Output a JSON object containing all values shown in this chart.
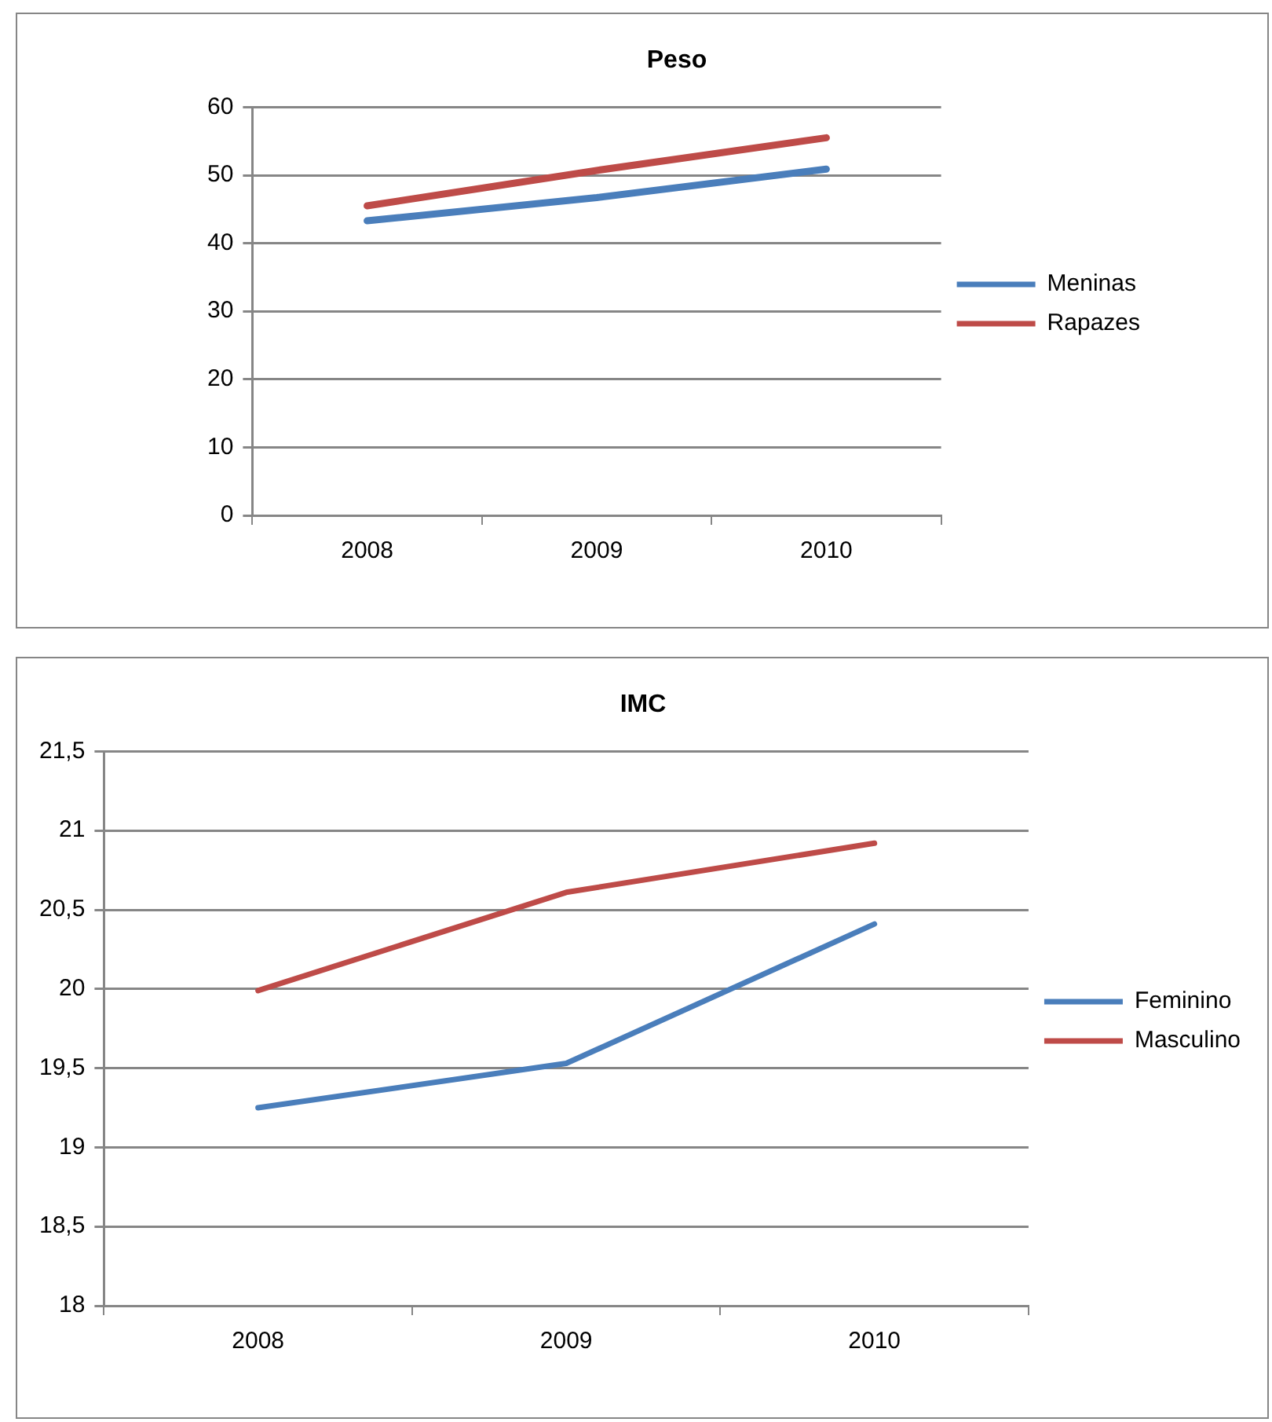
{
  "chart_data": [
    {
      "type": "line",
      "title": "Peso",
      "categories": [
        "2008",
        "2009",
        "2010"
      ],
      "series": [
        {
          "name": "Meninas",
          "color": "#4a7ebb",
          "values": [
            43.3,
            46.7,
            50.9
          ]
        },
        {
          "name": "Rapazes",
          "color": "#be4b48",
          "values": [
            45.5,
            50.7,
            55.5
          ]
        }
      ],
      "ylim": [
        0,
        60
      ],
      "yticks": [
        0,
        10,
        20,
        30,
        40,
        50,
        60
      ],
      "grid": "y",
      "legend": "right",
      "marker": "none",
      "line_style": "solid"
    },
    {
      "type": "line",
      "title": "IMC",
      "categories": [
        "2008",
        "2009",
        "2010"
      ],
      "series": [
        {
          "name": "Feminino",
          "color": "#4a7ebb",
          "values": [
            19.25,
            19.53,
            20.41
          ]
        },
        {
          "name": "Masculino",
          "color": "#be4b48",
          "values": [
            19.99,
            20.61,
            20.92
          ]
        }
      ],
      "ylim": [
        18,
        21.5
      ],
      "yticks": [
        {
          "value": 18,
          "label": "18"
        },
        {
          "value": 18.5,
          "label": "18,5"
        },
        {
          "value": 19,
          "label": "19"
        },
        {
          "value": 19.5,
          "label": "19,5"
        },
        {
          "value": 20,
          "label": "20"
        },
        {
          "value": 20.5,
          "label": "20,5"
        },
        {
          "value": 21,
          "label": "21"
        },
        {
          "value": 21.5,
          "label": "21,5"
        }
      ],
      "grid": "y",
      "legend": "right",
      "marker": "none",
      "line_style": "solid"
    }
  ]
}
